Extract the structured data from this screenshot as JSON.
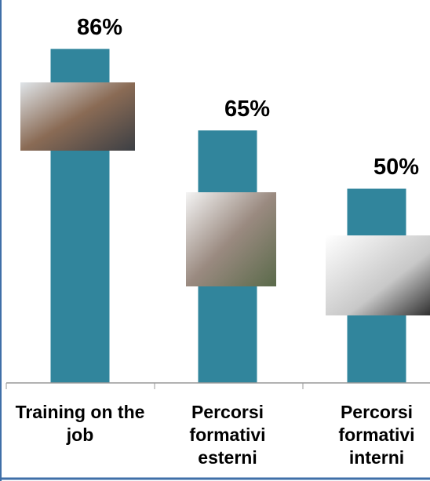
{
  "chart_data": {
    "type": "bar",
    "categories": [
      "Training on the job",
      "Percorsi formativi esterni",
      "Percorsi formativi interni"
    ],
    "values": [
      86,
      65,
      50
    ],
    "value_labels": [
      "86%",
      "65%",
      "50%"
    ],
    "color": "#31859c",
    "ylim": [
      0,
      100
    ]
  }
}
